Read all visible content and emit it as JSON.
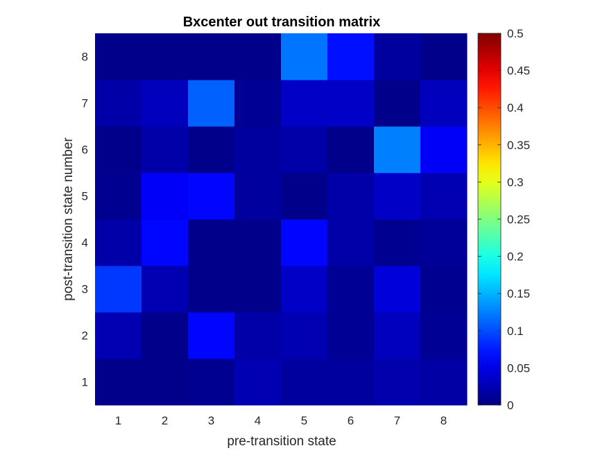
{
  "chart_data": {
    "type": "heatmap",
    "title": "Bxcenter out transition matrix",
    "xlabel": "pre-transition state",
    "ylabel": "post-transition state number",
    "x_categories": [
      "1",
      "2",
      "3",
      "4",
      "5",
      "6",
      "7",
      "8"
    ],
    "y_categories": [
      "1",
      "2",
      "3",
      "4",
      "5",
      "6",
      "7",
      "8"
    ],
    "colormap": "jet",
    "clim": [
      0,
      0.5
    ],
    "colorbar_ticks": [
      "0",
      "0.05",
      "0.1",
      "0.15",
      "0.2",
      "0.25",
      "0.3",
      "0.35",
      "0.4",
      "0.45",
      "0.5"
    ],
    "grid": false,
    "colorbar_position": "right",
    "values": [
      [
        0.005,
        0.005,
        0.008,
        0.025,
        0.015,
        0.015,
        0.022,
        0.018
      ],
      [
        0.025,
        0.005,
        0.065,
        0.02,
        0.025,
        0.01,
        0.03,
        0.01
      ],
      [
        0.09,
        0.025,
        0.005,
        0.005,
        0.035,
        0.01,
        0.045,
        0.008
      ],
      [
        0.02,
        0.065,
        0.005,
        0.005,
        0.065,
        0.02,
        0.008,
        0.012
      ],
      [
        0.008,
        0.06,
        0.065,
        0.015,
        0.005,
        0.02,
        0.035,
        0.025
      ],
      [
        0.005,
        0.02,
        0.005,
        0.015,
        0.02,
        0.005,
        0.125,
        0.06
      ],
      [
        0.02,
        0.03,
        0.11,
        0.01,
        0.035,
        0.035,
        0.005,
        0.03
      ],
      [
        0.005,
        0.005,
        0.005,
        0.005,
        0.12,
        0.07,
        0.015,
        0.005
      ]
    ]
  }
}
